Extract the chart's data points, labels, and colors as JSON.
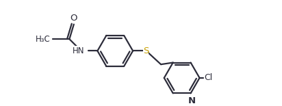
{
  "bg_color": "#ffffff",
  "line_color": "#2c2c3a",
  "S_color": "#c8a000",
  "line_width": 1.6,
  "font_size": 8.5,
  "figsize": [
    4.12,
    1.55
  ],
  "dpi": 100,
  "xlim": [
    0.0,
    10.5
  ],
  "ylim": [
    -1.8,
    2.2
  ]
}
